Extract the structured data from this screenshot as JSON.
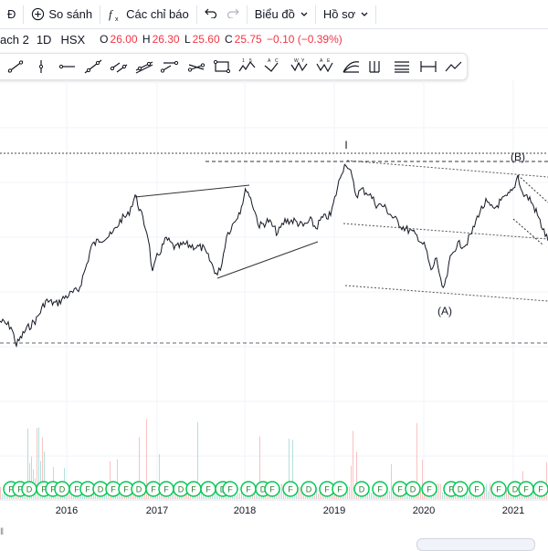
{
  "toolbar": {
    "symbol_fragment": "Đ",
    "compare_label": "So sánh",
    "indicators_label": "Các chỉ báo",
    "chart_type_label": "Biểu đồ",
    "profile_label": "Hồ sơ"
  },
  "legend": {
    "symbol": "ach 2",
    "interval": "1D",
    "exchange": "HSX",
    "open_label": "O",
    "open": "26.00",
    "high_label": "H",
    "high": "26.30",
    "low_label": "L",
    "low": "25.60",
    "close_label": "C",
    "close": "25.75",
    "change": "−0.10 (−0.39%)"
  },
  "drawing_tools": [
    {
      "name": "trend-line-icon"
    },
    {
      "name": "info-line-icon"
    },
    {
      "name": "horizontal-ray-icon"
    },
    {
      "name": "extended-line-icon"
    },
    {
      "name": "parallel-channel-icon"
    },
    {
      "name": "regression-trend-icon"
    },
    {
      "name": "flat-top-bottom-icon"
    },
    {
      "name": "disjoint-channel-icon"
    },
    {
      "name": "rectangle-icon"
    },
    {
      "name": "elliott-impulse-icon",
      "label": "1 5"
    },
    {
      "name": "elliott-correction-icon",
      "label": "A C"
    },
    {
      "name": "elliott-triangle-icon",
      "label": "W Y"
    },
    {
      "name": "elliott-combo-icon",
      "label": "A E"
    },
    {
      "name": "fib-fan-icon"
    },
    {
      "name": "pitchfork-icon"
    },
    {
      "name": "gann-box-icon"
    },
    {
      "name": "date-range-icon"
    },
    {
      "name": "forecast-icon"
    }
  ],
  "chart_data": {
    "type": "line",
    "x_labels": [
      "2016",
      "2017",
      "2018",
      "2019",
      "2020",
      "2021"
    ],
    "annotations": [
      "I",
      "(B)",
      "(A)"
    ],
    "colors": {
      "up": "#26a69a",
      "down": "#ef5350",
      "price": "#131722",
      "event": "#00c853"
    },
    "event_marker_labels": [
      "F",
      "D",
      "DF"
    ]
  },
  "corner_label": "‖",
  "bottom_widget_label": ""
}
